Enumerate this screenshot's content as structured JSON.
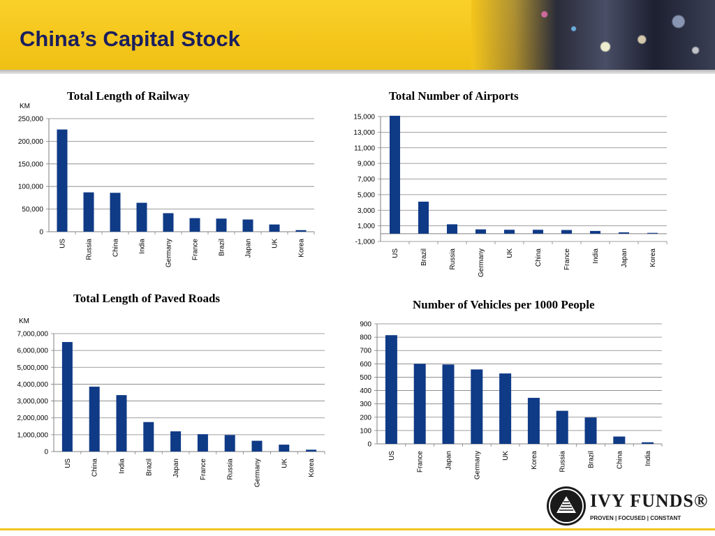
{
  "page": {
    "title": "China’s Capital Stock",
    "logo_name": "IVY FUNDS®",
    "logo_tagline": "PROVEN | FOCUSED | CONSTANT"
  },
  "colors": {
    "bar": "#0f3a86",
    "header": "#f4c51b",
    "title": "#1a1f5e",
    "grid": "#7f7f7f"
  },
  "chart_data": [
    {
      "type": "bar",
      "title": "Total Length of Railway",
      "ylabel": "KM",
      "categories": [
        "US",
        "Russia",
        "China",
        "India",
        "Germany",
        "France",
        "Brazil",
        "Japan",
        "UK",
        "Korea"
      ],
      "values": [
        226000,
        87000,
        86000,
        64000,
        41000,
        30000,
        29000,
        27000,
        16000,
        3500
      ],
      "ylim": [
        0,
        250000
      ],
      "yticks": [
        0,
        50000,
        100000,
        150000,
        200000,
        250000
      ],
      "ytick_labels": [
        "0",
        "50,000",
        "100,000",
        "150,000",
        "200,000",
        "250,000"
      ],
      "grid": true
    },
    {
      "type": "bar",
      "title": "Total Number of Airports",
      "ylabel": "",
      "categories": [
        "US",
        "Brazil",
        "Russia",
        "Germany",
        "UK",
        "China",
        "France",
        "India",
        "Japan",
        "Korea"
      ],
      "values": [
        15100,
        4100,
        1200,
        550,
        500,
        500,
        470,
        350,
        170,
        100
      ],
      "ylim": [
        -1000,
        15000
      ],
      "yticks": [
        -1000,
        1000,
        3000,
        5000,
        7000,
        9000,
        11000,
        13000,
        15000
      ],
      "ytick_labels": [
        "-1,000",
        "1,000",
        "3,000",
        "5,000",
        "7,000",
        "9,000",
        "11,000",
        "13,000",
        "15,000"
      ],
      "grid": true
    },
    {
      "type": "bar",
      "title": "Total Length of Paved Roads",
      "ylabel": "KM",
      "categories": [
        "US",
        "China",
        "India",
        "Brazil",
        "Japan",
        "France",
        "Russia",
        "Germany",
        "UK",
        "Korea"
      ],
      "values": [
        6500000,
        3850000,
        3350000,
        1750000,
        1200000,
        1030000,
        980000,
        640000,
        410000,
        110000
      ],
      "ylim": [
        0,
        7000000
      ],
      "yticks": [
        0,
        1000000,
        2000000,
        3000000,
        4000000,
        5000000,
        6000000,
        7000000
      ],
      "ytick_labels": [
        "0",
        "1,000,000",
        "2,000,000",
        "3,000,000",
        "4,000,000",
        "5,000,000",
        "6,000,000",
        "7,000,000"
      ],
      "grid": true
    },
    {
      "type": "bar",
      "title": "Number of Vehicles per 1000 People",
      "ylabel": "",
      "categories": [
        "US",
        "France",
        "Japan",
        "Germany",
        "UK",
        "Korea",
        "Russia",
        "Brazil",
        "China",
        "India"
      ],
      "values": [
        815,
        600,
        595,
        558,
        528,
        345,
        248,
        198,
        55,
        12
      ],
      "ylim": [
        0,
        900
      ],
      "yticks": [
        0,
        100,
        200,
        300,
        400,
        500,
        600,
        700,
        800,
        900
      ],
      "ytick_labels": [
        "0",
        "100",
        "200",
        "300",
        "400",
        "500",
        "600",
        "700",
        "800",
        "900"
      ],
      "grid": true
    }
  ]
}
